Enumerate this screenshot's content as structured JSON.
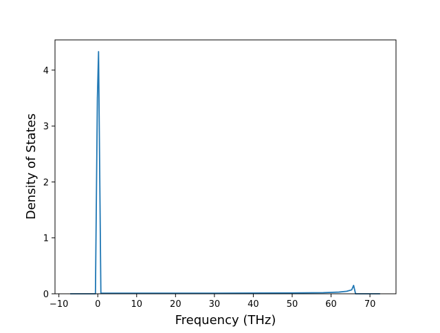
{
  "chart_data": {
    "type": "line",
    "xlabel": "Frequency (THz)",
    "ylabel": "Density of States",
    "series": [
      {
        "color": "#1f77b4",
        "x": [
          -7.1,
          -0.6,
          -0.1,
          0.2,
          0.8,
          10,
          30,
          50,
          58,
          62,
          64,
          65.3,
          65.8,
          66.3,
          72.6
        ],
        "values": [
          0,
          0,
          3.5,
          4.33,
          0.01,
          0.01,
          0.01,
          0.015,
          0.02,
          0.03,
          0.045,
          0.07,
          0.15,
          0,
          0
        ]
      }
    ],
    "xlim": [
      -11,
      76.7
    ],
    "ylim": [
      0,
      4.54
    ],
    "xticks": [
      {
        "value": -10,
        "label": "−10"
      },
      0,
      10,
      20,
      30,
      40,
      50,
      60,
      70
    ],
    "yticks": [
      0,
      1,
      2,
      3,
      4
    ]
  }
}
